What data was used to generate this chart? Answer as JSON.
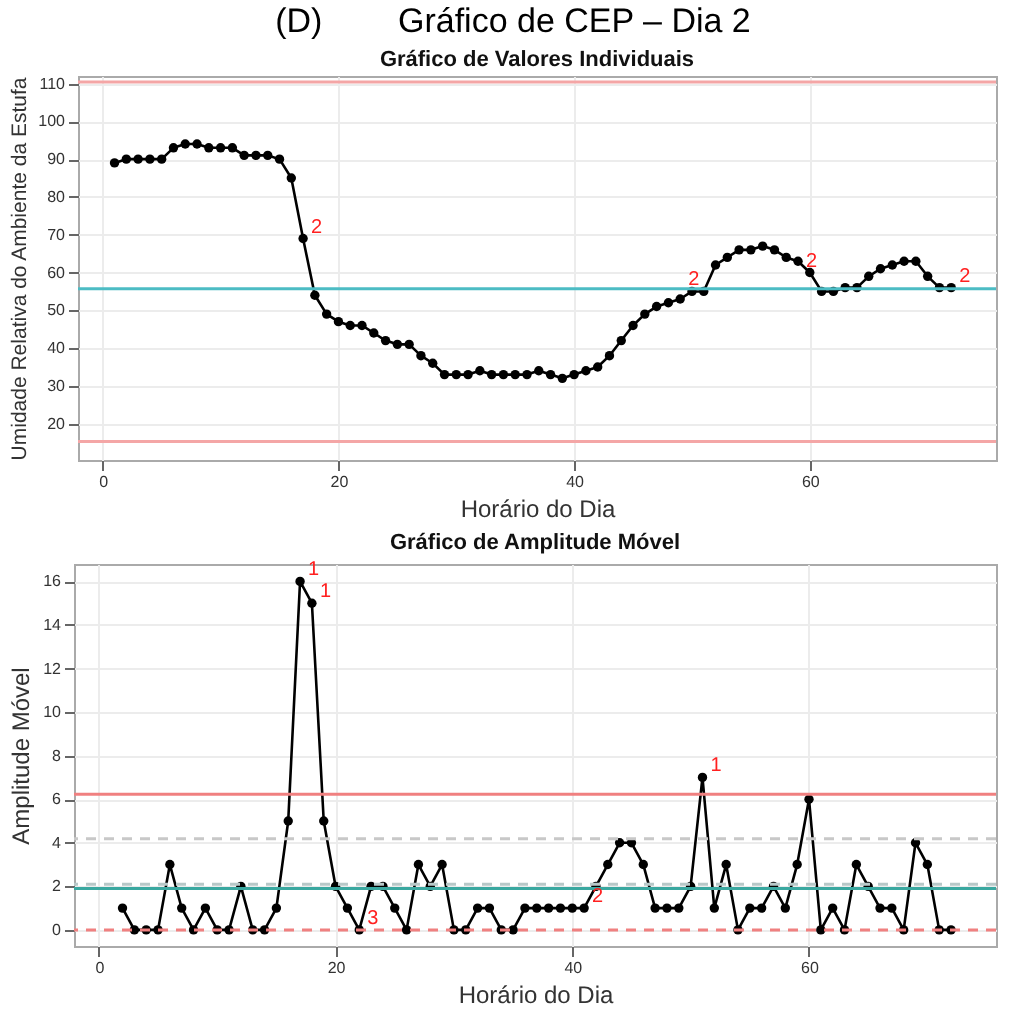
{
  "chart_data": [
    {
      "type": "line",
      "title": "Gráfico de Valores Individuais",
      "xlabel": "Horário do Dia",
      "ylabel": "Umidade Relativa do Ambiente da Estufa",
      "annotations": [
        "(D)        Gráfico de CEP – Dia 2",
        {
          "text": "2",
          "x": 17,
          "y": 69
        },
        {
          "text": "2",
          "x": 49,
          "y": 55
        },
        {
          "text": "2",
          "x": 59,
          "y": 60
        },
        {
          "text": "2",
          "x": 72,
          "y": 56
        }
      ],
      "x": [
        1,
        2,
        3,
        4,
        5,
        6,
        7,
        8,
        9,
        10,
        11,
        12,
        13,
        14,
        15,
        16,
        17,
        18,
        19,
        20,
        21,
        22,
        23,
        24,
        25,
        26,
        27,
        28,
        29,
        30,
        31,
        32,
        33,
        34,
        35,
        36,
        37,
        38,
        39,
        40,
        41,
        42,
        43,
        44,
        45,
        46,
        47,
        48,
        49,
        50,
        51,
        52,
        53,
        54,
        55,
        56,
        57,
        58,
        59,
        60,
        61,
        62,
        63,
        64,
        65,
        66,
        67,
        68,
        69,
        70,
        71,
        72
      ],
      "series": [
        {
          "color": "#000000",
          "values": [
            89,
            90,
            90,
            90,
            90,
            93,
            94,
            94,
            93,
            93,
            93,
            91,
            91,
            91,
            90,
            85,
            69,
            54,
            49,
            47,
            46,
            46,
            44,
            42,
            41,
            41,
            38,
            36,
            33,
            33,
            33,
            34,
            33,
            33,
            33,
            33,
            34,
            33,
            32,
            33,
            34,
            35,
            38,
            42,
            46,
            49,
            51,
            52,
            53,
            55,
            55,
            62,
            64,
            66,
            66,
            67,
            66,
            64,
            63,
            60,
            55,
            55,
            56,
            56,
            59,
            61,
            62,
            63,
            63,
            59,
            56,
            56
          ]
        }
      ],
      "ref_lines": [
        {
          "axis": "y",
          "value": 110.4,
          "color": "#f4a6a6"
        },
        {
          "axis": "y",
          "value": 55.7,
          "color": "#4cbcc4"
        },
        {
          "axis": "y",
          "value": 15.3,
          "color": "#f4a6a6"
        }
      ],
      "xlim": [
        -2.1,
        75.8
      ],
      "ylim": [
        10.4,
        112
      ],
      "xticks": [
        0,
        20,
        40,
        60
      ],
      "yticks": [
        20,
        30,
        40,
        50,
        60,
        70,
        80,
        90,
        100,
        110
      ],
      "grid": true,
      "marker": "circle",
      "line_style": "solid"
    },
    {
      "type": "line",
      "title": "Gráfico de Amplitude Móvel",
      "xlabel": "Horário do Dia",
      "ylabel": "Amplitude Móvel",
      "annotations": [
        {
          "text": "1",
          "x": 17,
          "y": 16
        },
        {
          "text": "1",
          "x": 18,
          "y": 15
        },
        {
          "text": "3",
          "x": 22,
          "y": 0
        },
        {
          "text": "2",
          "x": 41,
          "y": 1
        },
        {
          "text": "1",
          "x": 51,
          "y": 7
        }
      ],
      "x": [
        2,
        3,
        4,
        5,
        6,
        7,
        8,
        9,
        10,
        11,
        12,
        13,
        14,
        15,
        16,
        17,
        18,
        19,
        20,
        21,
        22,
        23,
        24,
        25,
        26,
        27,
        28,
        29,
        30,
        31,
        32,
        33,
        34,
        35,
        36,
        37,
        38,
        39,
        40,
        41,
        42,
        43,
        44,
        45,
        46,
        47,
        48,
        49,
        50,
        51,
        52,
        53,
        54,
        55,
        56,
        57,
        58,
        59,
        60,
        61,
        62,
        63,
        64,
        65,
        66,
        67,
        68,
        69,
        70,
        71,
        72
      ],
      "series": [
        {
          "color": "#000000",
          "values": [
            1,
            0,
            0,
            0,
            3,
            1,
            0,
            1,
            0,
            0,
            2,
            0,
            0,
            1,
            5,
            16,
            15,
            5,
            2,
            1,
            0,
            2,
            2,
            1,
            0,
            3,
            2,
            3,
            0,
            0,
            1,
            1,
            0,
            0,
            1,
            1,
            1,
            1,
            1,
            1,
            2,
            3,
            4,
            4,
            3,
            1,
            1,
            1,
            2,
            7,
            1,
            3,
            0,
            1,
            1,
            2,
            1,
            3,
            6,
            0,
            1,
            0,
            3,
            2,
            1,
            1,
            0,
            4,
            3,
            0,
            0
          ]
        }
      ],
      "ref_lines": [
        {
          "axis": "y",
          "value": 6.23,
          "color": "#f08080"
        },
        {
          "axis": "y",
          "value": 4.18,
          "color": "#c8c8c8",
          "line_style": "dashed"
        },
        {
          "axis": "y",
          "value": 2.09,
          "color": "#b8c8c8",
          "line_style": "dashed"
        },
        {
          "axis": "y",
          "value": 1.9,
          "color": "#3aa8a0"
        },
        {
          "axis": "y",
          "value": 0,
          "color": "#f08080",
          "line_style": "dashed"
        }
      ],
      "xlim": [
        -2.1,
        75.8
      ],
      "ylim": [
        -0.74,
        16.8
      ],
      "xticks": [
        0,
        20,
        40,
        60
      ],
      "yticks": [
        0,
        2,
        4,
        6,
        8,
        10,
        12,
        14,
        16
      ],
      "grid": true,
      "marker": "circle",
      "line_style": "solid"
    }
  ]
}
